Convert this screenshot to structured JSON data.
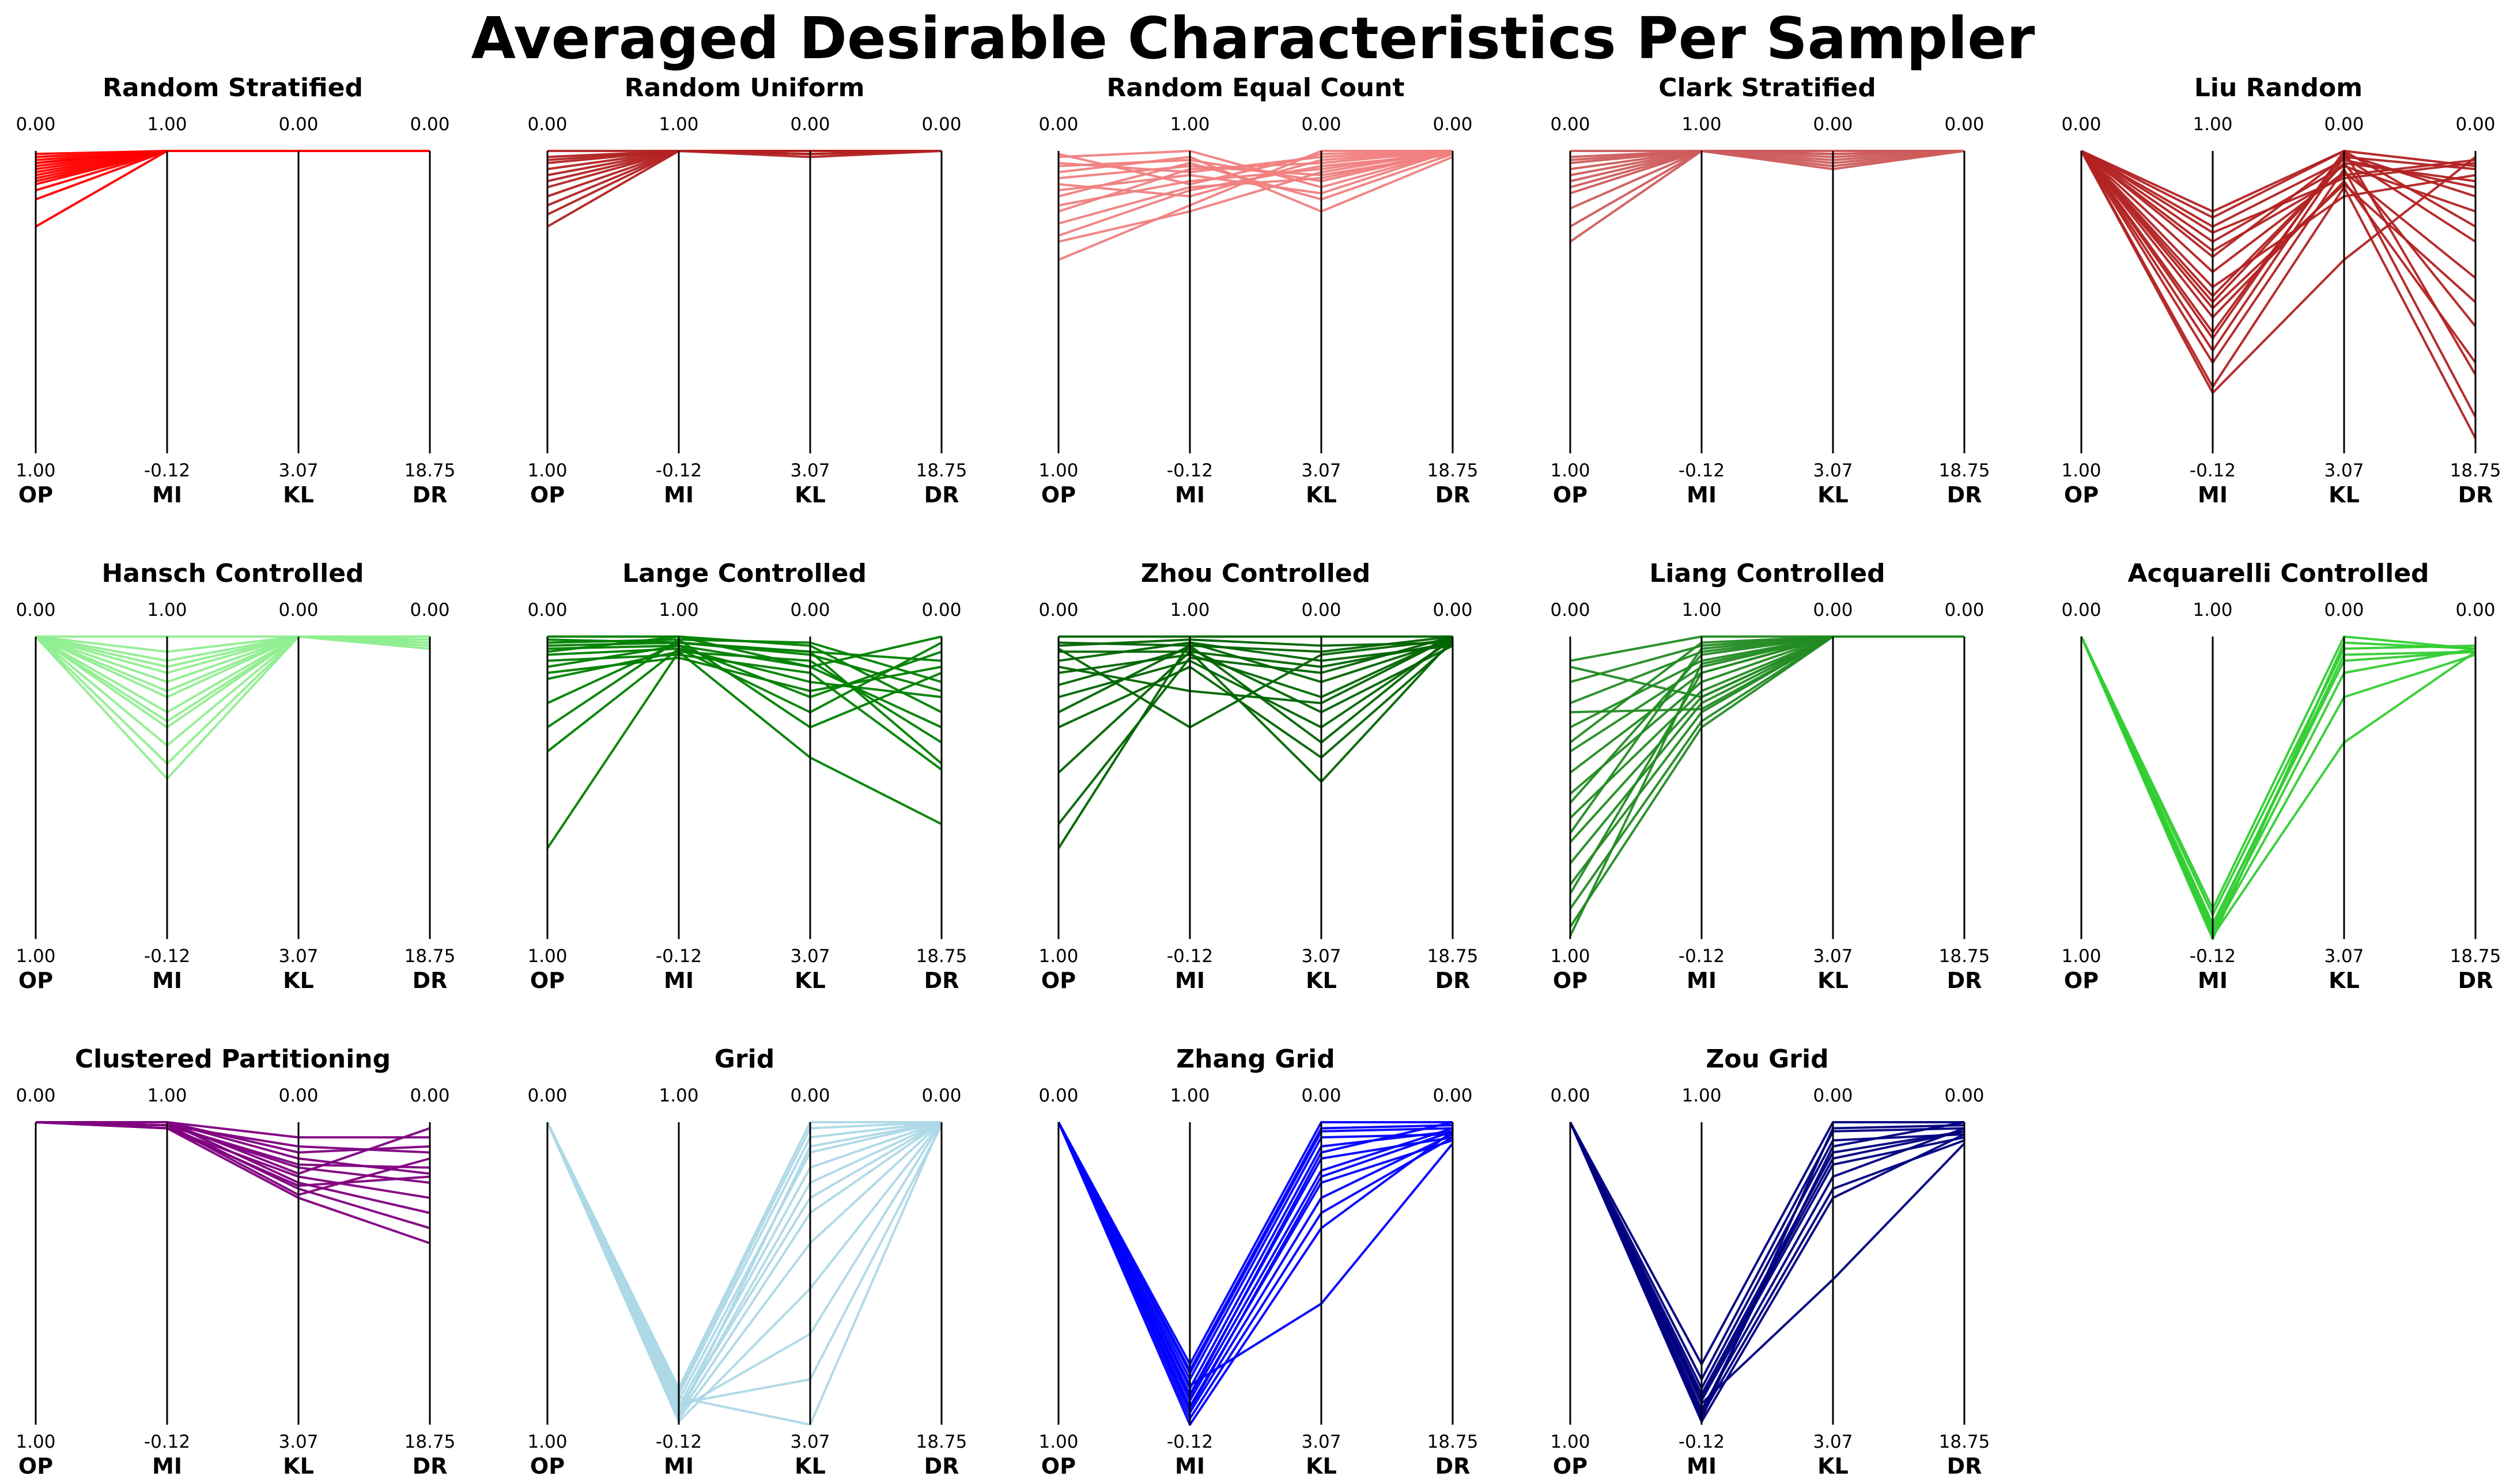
{
  "title": "Averaged Desirable Characteristics Per Sampler",
  "chart_data": {
    "type": "parallel-coordinates",
    "axes": [
      "OP",
      "MI",
      "KL",
      "DR"
    ],
    "axis_top_labels": [
      "0.00",
      "1.00",
      "0.00",
      "0.00"
    ],
    "axis_bottom_labels": [
      "1.00",
      "-0.12",
      "3.07",
      "18.75"
    ],
    "panels": [
      {
        "name": "Random Stratified",
        "color": "#ff0000",
        "lines": [
          [
            0.01,
            0,
            0,
            0
          ],
          [
            0.05,
            0,
            0,
            0
          ],
          [
            0.02,
            0,
            0,
            0
          ],
          [
            0.08,
            0,
            0,
            0
          ],
          [
            0.04,
            0,
            0,
            0
          ],
          [
            0.11,
            0,
            0,
            0
          ],
          [
            0.06,
            0,
            0,
            0
          ],
          [
            0.03,
            0,
            0,
            0
          ],
          [
            0.16,
            0,
            0,
            0
          ],
          [
            0.09,
            0,
            0,
            0
          ],
          [
            0.13,
            0,
            0,
            0
          ],
          [
            0.1,
            0,
            0,
            0
          ],
          [
            0.25,
            0,
            0,
            0
          ],
          [
            0.07,
            0,
            0,
            0
          ],
          [
            0.04,
            0,
            0,
            0
          ]
        ]
      },
      {
        "name": "Random Uniform",
        "color": "#b22222",
        "lines": [
          [
            0.0,
            0,
            0.0,
            0
          ],
          [
            0.04,
            0,
            0.0,
            0
          ],
          [
            0.02,
            0,
            0.01,
            0
          ],
          [
            0.08,
            0,
            0.0,
            0
          ],
          [
            0.12,
            0,
            0.02,
            0
          ],
          [
            0.06,
            0,
            0.0,
            0
          ],
          [
            0.15,
            0,
            0.01,
            0
          ],
          [
            0.21,
            0,
            0.0,
            0
          ],
          [
            0.1,
            0,
            0.0,
            0
          ],
          [
            0.25,
            0,
            0.01,
            0
          ],
          [
            0.03,
            0,
            0.0,
            0
          ],
          [
            0.18,
            0,
            0.0,
            0
          ]
        ]
      },
      {
        "name": "Random Equal Count",
        "color": "#f08080",
        "lines": [
          [
            0.02,
            0.0,
            0.12,
            0
          ],
          [
            0.05,
            0.03,
            0.1,
            0
          ],
          [
            0.09,
            0.05,
            0.08,
            0.01
          ],
          [
            0.13,
            0.08,
            0.14,
            0
          ],
          [
            0.18,
            0.1,
            0.06,
            0
          ],
          [
            0.28,
            0.13,
            0.05,
            0.01
          ],
          [
            0.36,
            0.18,
            0.0,
            0
          ],
          [
            0.2,
            0.06,
            0.04,
            0
          ],
          [
            0.07,
            0.02,
            0.2,
            0.02
          ],
          [
            0.11,
            0.15,
            0.03,
            0
          ],
          [
            0.24,
            0.12,
            0.09,
            0
          ],
          [
            0.04,
            0.07,
            0.02,
            0
          ],
          [
            0.15,
            0.04,
            0.16,
            0.01
          ],
          [
            0.3,
            0.2,
            0.07,
            0
          ],
          [
            0.01,
            0.11,
            0.01,
            0
          ]
        ]
      },
      {
        "name": "Clark Stratified",
        "color": "#cd5c5c",
        "lines": [
          [
            0.0,
            0,
            0,
            0
          ],
          [
            0.03,
            0,
            0,
            0
          ],
          [
            0.06,
            0,
            0.03,
            0
          ],
          [
            0.1,
            0,
            0.01,
            0
          ],
          [
            0.14,
            0,
            0.0,
            0
          ],
          [
            0.19,
            0,
            0.05,
            0
          ],
          [
            0.25,
            0,
            0.02,
            0
          ],
          [
            0.3,
            0,
            0.0,
            0
          ],
          [
            0.08,
            0,
            0.0,
            0
          ],
          [
            0.04,
            0,
            0.04,
            0
          ],
          [
            0.12,
            0,
            0.06,
            0
          ],
          [
            0.02,
            0,
            0.01,
            0
          ]
        ]
      },
      {
        "name": "Liu Random",
        "color": "#b22222",
        "lines": [
          [
            0,
            0.2,
            0.0,
            0.05
          ],
          [
            0,
            0.25,
            0.03,
            0.12
          ],
          [
            0,
            0.3,
            0.05,
            0.2
          ],
          [
            0,
            0.35,
            0.02,
            0.3
          ],
          [
            0,
            0.4,
            0.07,
            0.42
          ],
          [
            0,
            0.5,
            0.04,
            0.58
          ],
          [
            0,
            0.55,
            0.1,
            0.7
          ],
          [
            0,
            0.62,
            0.0,
            0.74
          ],
          [
            0,
            0.7,
            0.06,
            0.88
          ],
          [
            0,
            0.78,
            0.12,
            0.95
          ],
          [
            0,
            0.8,
            0.36,
            0.02
          ],
          [
            0,
            0.27,
            0.09,
            0.04
          ],
          [
            0,
            0.45,
            0.15,
            0.08
          ],
          [
            0,
            0.6,
            0.01,
            0.15
          ],
          [
            0,
            0.33,
            0.08,
            0.03
          ],
          [
            0,
            0.22,
            0.0,
            0.25
          ],
          [
            0,
            0.48,
            0.04,
            0.1
          ],
          [
            0,
            0.66,
            0.02,
            0.06
          ],
          [
            0,
            0.52,
            0.11,
            0.5
          ]
        ]
      },
      {
        "name": "Hansch Controlled",
        "color": "#90ee90",
        "lines": [
          [
            0,
            0.0,
            0,
            0.0
          ],
          [
            0,
            0.05,
            0,
            0.01
          ],
          [
            0,
            0.1,
            0,
            0.02
          ],
          [
            0,
            0.15,
            0,
            0.03
          ],
          [
            0,
            0.2,
            0,
            0.01
          ],
          [
            0,
            0.25,
            0,
            0.04
          ],
          [
            0,
            0.3,
            0,
            0.02
          ],
          [
            0,
            0.36,
            0,
            0.03
          ],
          [
            0,
            0.42,
            0,
            0.01
          ],
          [
            0,
            0.47,
            0,
            0.02
          ],
          [
            0,
            0.08,
            0,
            0.04
          ],
          [
            0,
            0.18,
            0,
            0.0
          ],
          [
            0,
            0.28,
            0,
            0.02
          ],
          [
            0,
            0.12,
            0,
            0.03
          ]
        ]
      },
      {
        "name": "Lange Controlled",
        "color": "#008000",
        "lines": [
          [
            0.0,
            0.0,
            0.1,
            0.0
          ],
          [
            0.03,
            0.02,
            0.05,
            0.08
          ],
          [
            0.06,
            0.04,
            0.15,
            0.2
          ],
          [
            0.1,
            0.03,
            0.2,
            0.05
          ],
          [
            0.14,
            0.05,
            0.08,
            0.35
          ],
          [
            0.02,
            0.01,
            0.3,
            0.12
          ],
          [
            0.08,
            0.06,
            0.12,
            0.44
          ],
          [
            0.22,
            0.02,
            0.06,
            0.18
          ],
          [
            0.38,
            0.04,
            0.25,
            0.02
          ],
          [
            0.7,
            0.05,
            0.4,
            0.62
          ],
          [
            0.05,
            0.0,
            0.03,
            0.25
          ],
          [
            0.12,
            0.07,
            0.18,
            0.1
          ],
          [
            0.04,
            0.03,
            0.1,
            0.3
          ],
          [
            0.3,
            0.01,
            0.02,
            0.15
          ],
          [
            0.01,
            0.02,
            0.05,
            0.42
          ]
        ]
      },
      {
        "name": "Zhou Controlled",
        "color": "#006400",
        "lines": [
          [
            0.0,
            0.0,
            0.0,
            0.0
          ],
          [
            0.02,
            0.03,
            0.05,
            0.0
          ],
          [
            0.05,
            0.05,
            0.1,
            0.02
          ],
          [
            0.08,
            0.02,
            0.15,
            0.01
          ],
          [
            0.12,
            0.06,
            0.2,
            0.0
          ],
          [
            0.16,
            0.04,
            0.25,
            0.03
          ],
          [
            0.2,
            0.08,
            0.3,
            0.01
          ],
          [
            0.25,
            0.03,
            0.35,
            0.0
          ],
          [
            0.3,
            0.1,
            0.4,
            0.02
          ],
          [
            0.45,
            0.05,
            0.48,
            0.01
          ],
          [
            0.62,
            0.07,
            0.12,
            0.0
          ],
          [
            0.7,
            0.02,
            0.08,
            0.03
          ],
          [
            0.04,
            0.3,
            0.06,
            0.01
          ],
          [
            0.1,
            0.18,
            0.22,
            0.0
          ],
          [
            0.03,
            0.01,
            0.03,
            0.02
          ]
        ]
      },
      {
        "name": "Liang Controlled",
        "color": "#228b22",
        "lines": [
          [
            0.08,
            0.0,
            0,
            0
          ],
          [
            0.15,
            0.03,
            0,
            0
          ],
          [
            0.22,
            0.05,
            0,
            0
          ],
          [
            0.3,
            0.08,
            0,
            0
          ],
          [
            0.38,
            0.1,
            0,
            0
          ],
          [
            0.45,
            0.12,
            0,
            0
          ],
          [
            0.52,
            0.15,
            0,
            0
          ],
          [
            0.6,
            0.18,
            0,
            0
          ],
          [
            0.68,
            0.2,
            0,
            0
          ],
          [
            0.75,
            0.22,
            0,
            0
          ],
          [
            0.82,
            0.25,
            0,
            0
          ],
          [
            0.9,
            0.28,
            0,
            0
          ],
          [
            0.96,
            0.3,
            0,
            0
          ],
          [
            0.1,
            0.2,
            0,
            0
          ],
          [
            0.35,
            0.02,
            0,
            0
          ],
          [
            0.55,
            0.06,
            0,
            0
          ],
          [
            0.85,
            0.12,
            0,
            0
          ],
          [
            0.25,
            0.24,
            0,
            0
          ],
          [
            0.65,
            0.04,
            0,
            0
          ],
          [
            0.99,
            0.09,
            0,
            0
          ]
        ]
      },
      {
        "name": "Acquarelli Controlled",
        "color": "#32cd32",
        "lines": [
          [
            0,
            0.9,
            0.0,
            0.04
          ],
          [
            0,
            0.92,
            0.04,
            0.03
          ],
          [
            0,
            0.95,
            0.08,
            0.05
          ],
          [
            0,
            0.97,
            0.12,
            0.04
          ],
          [
            0,
            0.98,
            0.2,
            0.06
          ],
          [
            0,
            0.99,
            0.35,
            0.05
          ],
          [
            0,
            1.0,
            0.02,
            0.04
          ],
          [
            0,
            0.96,
            0.06,
            0.05
          ]
        ]
      },
      {
        "name": "Clustered Partitioning",
        "color": "#800080",
        "lines": [
          [
            0,
            0.0,
            0.05,
            0.05
          ],
          [
            0,
            0.01,
            0.08,
            0.1
          ],
          [
            0,
            0.0,
            0.12,
            0.17
          ],
          [
            0,
            0.01,
            0.15,
            0.2
          ],
          [
            0,
            0.02,
            0.18,
            0.25
          ],
          [
            0,
            0.0,
            0.2,
            0.3
          ],
          [
            0,
            0.01,
            0.22,
            0.35
          ],
          [
            0,
            0.02,
            0.25,
            0.4
          ],
          [
            0,
            0.0,
            0.1,
            0.08
          ],
          [
            0,
            0.01,
            0.14,
            0.15
          ],
          [
            0,
            0.0,
            0.17,
            0.02
          ],
          [
            0,
            0.02,
            0.21,
            0.18
          ],
          [
            0,
            0.01,
            0.24,
            0.12
          ]
        ]
      },
      {
        "name": "Grid",
        "color": "#add8e6",
        "lines": [
          [
            0,
            0.88,
            0.0,
            0
          ],
          [
            0,
            0.9,
            0.05,
            0
          ],
          [
            0,
            0.92,
            0.1,
            0
          ],
          [
            0,
            0.94,
            0.15,
            0
          ],
          [
            0,
            0.96,
            0.2,
            0
          ],
          [
            0,
            0.97,
            0.3,
            0
          ],
          [
            0,
            0.98,
            0.4,
            0
          ],
          [
            0,
            0.99,
            0.55,
            0
          ],
          [
            0,
            0.95,
            0.7,
            0
          ],
          [
            0,
            0.93,
            0.85,
            0.01
          ],
          [
            0,
            0.91,
            1.0,
            0
          ],
          [
            0,
            0.89,
            0.02,
            0
          ],
          [
            0,
            0.97,
            0.08,
            0
          ],
          [
            0,
            0.95,
            0.25,
            0
          ]
        ]
      },
      {
        "name": "Zhang Grid",
        "color": "#0000ff",
        "lines": [
          [
            0,
            0.8,
            0.0,
            0.0
          ],
          [
            0,
            0.83,
            0.03,
            0.02
          ],
          [
            0,
            0.85,
            0.05,
            0.04
          ],
          [
            0,
            0.88,
            0.08,
            0.03
          ],
          [
            0,
            0.9,
            0.12,
            0.05
          ],
          [
            0,
            0.92,
            0.16,
            0.02
          ],
          [
            0,
            0.94,
            0.2,
            0.06
          ],
          [
            0,
            0.96,
            0.25,
            0.04
          ],
          [
            0,
            0.98,
            0.3,
            0.05
          ],
          [
            0,
            1.0,
            0.35,
            0.03
          ],
          [
            0,
            0.87,
            0.6,
            0.07
          ],
          [
            0,
            0.82,
            0.02,
            0.01
          ],
          [
            0,
            0.91,
            0.1,
            0.0
          ],
          [
            0,
            0.95,
            0.18,
            0.03
          ]
        ]
      },
      {
        "name": "Zou Grid",
        "color": "#000080",
        "lines": [
          [
            0,
            0.8,
            0.0,
            0.0
          ],
          [
            0,
            0.85,
            0.03,
            0.02
          ],
          [
            0,
            0.88,
            0.06,
            0.04
          ],
          [
            0,
            0.9,
            0.1,
            0.03
          ],
          [
            0,
            0.92,
            0.14,
            0.05
          ],
          [
            0,
            0.95,
            0.18,
            0.02
          ],
          [
            0,
            0.97,
            0.22,
            0.06
          ],
          [
            0,
            0.99,
            0.25,
            0.04
          ],
          [
            0,
            0.93,
            0.52,
            0.07
          ],
          [
            0,
            0.98,
            0.02,
            0.01
          ],
          [
            0,
            0.96,
            0.08,
            0.0
          ],
          [
            0,
            0.91,
            0.12,
            0.03
          ]
        ]
      }
    ]
  }
}
